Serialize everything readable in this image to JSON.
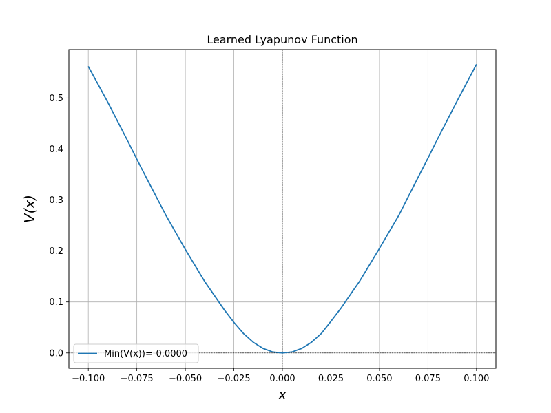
{
  "chart_data": {
    "type": "line",
    "title": "Learned Lyapunov Function",
    "xlabel": "x",
    "ylabel": "V(x)",
    "xlim": [
      -0.11,
      0.11
    ],
    "ylim": [
      -0.03,
      0.595
    ],
    "xticks": [
      -0.1,
      -0.075,
      -0.05,
      -0.025,
      0.0,
      0.025,
      0.05,
      0.075,
      0.1
    ],
    "xtick_labels": [
      "−0.100",
      "−0.075",
      "−0.050",
      "−0.025",
      "0.000",
      "0.025",
      "0.050",
      "0.075",
      "0.100"
    ],
    "yticks": [
      0.0,
      0.1,
      0.2,
      0.3,
      0.4,
      0.5
    ],
    "ytick_labels": [
      "0.0",
      "0.1",
      "0.2",
      "0.3",
      "0.4",
      "0.5"
    ],
    "grid": true,
    "legend_position": "lower-left",
    "reference_lines": {
      "horizontal_y": 0.0,
      "vertical_x": 0.0
    },
    "colors": {
      "series": "#1f77b4",
      "grid": "#b0b0b0",
      "reference": "#000000"
    },
    "series": [
      {
        "name": "Min(V(x))=-0.0000",
        "x": [
          -0.1,
          -0.09,
          -0.08,
          -0.075,
          -0.07,
          -0.06,
          -0.05,
          -0.04,
          -0.03,
          -0.025,
          -0.02,
          -0.015,
          -0.01,
          -0.005,
          0.0,
          0.005,
          0.01,
          0.015,
          0.02,
          0.025,
          0.03,
          0.04,
          0.05,
          0.06,
          0.07,
          0.075,
          0.08,
          0.09,
          0.1
        ],
        "y": [
          0.562,
          0.492,
          0.418,
          0.38,
          0.343,
          0.27,
          0.203,
          0.14,
          0.085,
          0.06,
          0.038,
          0.021,
          0.009,
          0.002,
          0.0,
          0.002,
          0.009,
          0.021,
          0.038,
          0.062,
          0.087,
          0.142,
          0.205,
          0.27,
          0.345,
          0.382,
          0.42,
          0.494,
          0.566
        ]
      }
    ]
  }
}
